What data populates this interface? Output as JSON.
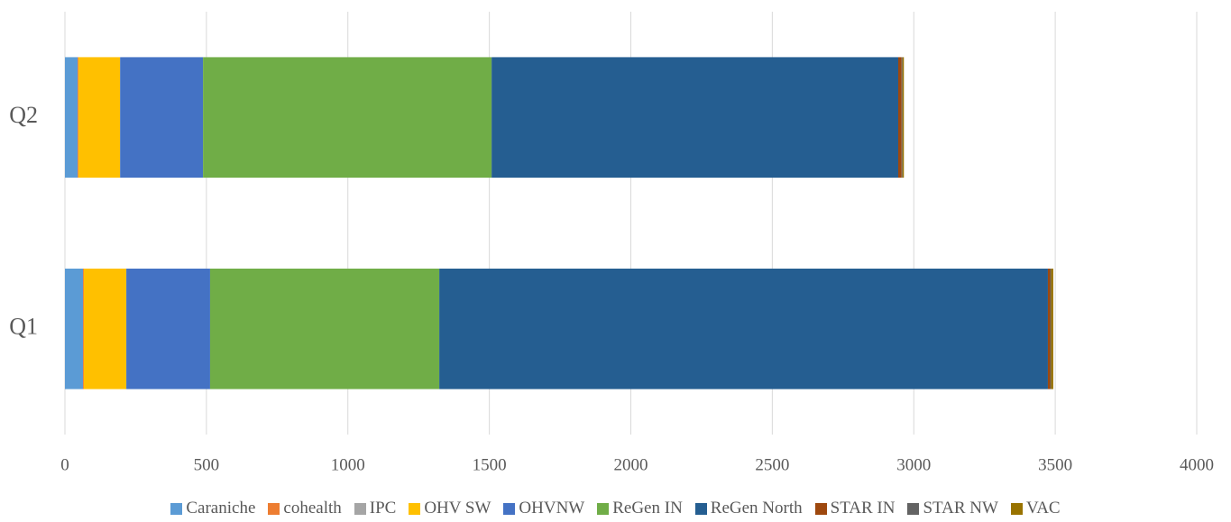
{
  "chart_data": {
    "type": "stacked_barh",
    "categories": [
      "Q1",
      "Q2"
    ],
    "series": [
      {
        "name": "Caraniche",
        "color": "#5b9bd5",
        "values": [
          64,
          45
        ]
      },
      {
        "name": "cohealth",
        "color": "#ed7d31",
        "values": [
          3,
          3
        ]
      },
      {
        "name": "IPC",
        "color": "#a5a5a5",
        "values": [
          0,
          0
        ]
      },
      {
        "name": "OHV SW",
        "color": "#ffc000",
        "values": [
          150,
          147
        ]
      },
      {
        "name": "OHVNW",
        "color": "#4472c4",
        "values": [
          296,
          293
        ]
      },
      {
        "name": "ReGen IN",
        "color": "#70ad47",
        "values": [
          810,
          1020
        ]
      },
      {
        "name": "ReGen North",
        "color": "#255e91",
        "values": [
          2151,
          1437
        ]
      },
      {
        "name": "STAR IN",
        "color": "#9e480e",
        "values": [
          8,
          12
        ]
      },
      {
        "name": "STAR NW",
        "color": "#636363",
        "values": [
          3,
          3
        ]
      },
      {
        "name": "VAC",
        "color": "#997300",
        "values": [
          8,
          5
        ]
      }
    ],
    "xlim": [
      0,
      4000
    ],
    "xticks": [
      0,
      500,
      1000,
      1500,
      2000,
      2500,
      3000,
      3500,
      4000
    ],
    "grid": true,
    "legend": "bottom"
  }
}
